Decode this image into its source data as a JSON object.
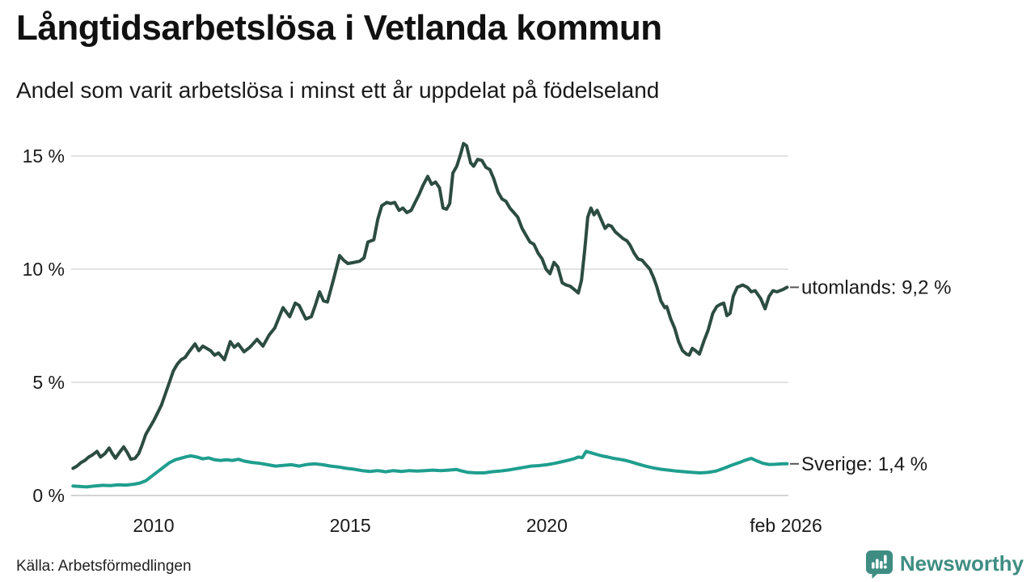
{
  "chart_data": {
    "type": "line",
    "title": "Långtidsarbetslösa i Vetlanda kommun",
    "subtitle": "Andel som varit arbetslösa i minst ett år uppdelat på födelseland",
    "source": "Källa: Arbetsförmedlingen",
    "xlabel": "",
    "ylabel": "",
    "grid": true,
    "legend_position": "end-of-line-labels",
    "x_domain": [
      2007.95,
      2026.17
    ],
    "y_domain": [
      0,
      16
    ],
    "y_ticks": [
      {
        "v": 0,
        "label": "0 %"
      },
      {
        "v": 5,
        "label": "5 %"
      },
      {
        "v": 10,
        "label": "10 %"
      },
      {
        "v": 15,
        "label": "15 %"
      }
    ],
    "x_ticks": [
      {
        "v": 2010,
        "label": "2010"
      },
      {
        "v": 2015,
        "label": "2015"
      },
      {
        "v": 2020,
        "label": "2020"
      },
      {
        "v": 2026.08,
        "label": "feb 2026"
      }
    ],
    "series": [
      {
        "name": "utomlands",
        "color": "#2c4c41",
        "end_label": "utomlands: 9,2 %",
        "last_value": 9.2,
        "points": [
          [
            2007.95,
            1.2
          ],
          [
            2008.05,
            1.3
          ],
          [
            2008.15,
            1.45
          ],
          [
            2008.25,
            1.55
          ],
          [
            2008.35,
            1.7
          ],
          [
            2008.45,
            1.8
          ],
          [
            2008.56,
            1.95
          ],
          [
            2008.65,
            1.7
          ],
          [
            2008.76,
            1.85
          ],
          [
            2008.87,
            2.1
          ],
          [
            2008.95,
            1.85
          ],
          [
            2009.03,
            1.65
          ],
          [
            2009.13,
            1.9
          ],
          [
            2009.24,
            2.15
          ],
          [
            2009.33,
            1.9
          ],
          [
            2009.42,
            1.6
          ],
          [
            2009.53,
            1.65
          ],
          [
            2009.62,
            1.85
          ],
          [
            2009.7,
            2.2
          ],
          [
            2009.8,
            2.7
          ],
          [
            2009.9,
            3.0
          ],
          [
            2010.0,
            3.3
          ],
          [
            2010.1,
            3.65
          ],
          [
            2010.2,
            4.0
          ],
          [
            2010.3,
            4.5
          ],
          [
            2010.4,
            5.0
          ],
          [
            2010.5,
            5.5
          ],
          [
            2010.6,
            5.8
          ],
          [
            2010.7,
            6.0
          ],
          [
            2010.8,
            6.1
          ],
          [
            2010.9,
            6.35
          ],
          [
            2011.05,
            6.7
          ],
          [
            2011.15,
            6.4
          ],
          [
            2011.25,
            6.6
          ],
          [
            2011.35,
            6.5
          ],
          [
            2011.45,
            6.4
          ],
          [
            2011.55,
            6.2
          ],
          [
            2011.65,
            6.3
          ],
          [
            2011.8,
            6.0
          ],
          [
            2011.95,
            6.8
          ],
          [
            2012.05,
            6.55
          ],
          [
            2012.15,
            6.7
          ],
          [
            2012.3,
            6.35
          ],
          [
            2012.45,
            6.55
          ],
          [
            2012.63,
            6.9
          ],
          [
            2012.78,
            6.6
          ],
          [
            2012.94,
            7.1
          ],
          [
            2013.08,
            7.4
          ],
          [
            2013.29,
            8.3
          ],
          [
            2013.46,
            7.9
          ],
          [
            2013.6,
            8.5
          ],
          [
            2013.7,
            8.4
          ],
          [
            2013.87,
            7.8
          ],
          [
            2014.01,
            7.9
          ],
          [
            2014.11,
            8.4
          ],
          [
            2014.22,
            9.0
          ],
          [
            2014.32,
            8.6
          ],
          [
            2014.42,
            8.55
          ],
          [
            2014.59,
            9.65
          ],
          [
            2014.73,
            10.6
          ],
          [
            2014.83,
            10.4
          ],
          [
            2014.94,
            10.25
          ],
          [
            2015.1,
            10.3
          ],
          [
            2015.24,
            10.35
          ],
          [
            2015.35,
            10.5
          ],
          [
            2015.45,
            11.2
          ],
          [
            2015.6,
            11.3
          ],
          [
            2015.7,
            12.2
          ],
          [
            2015.8,
            12.8
          ],
          [
            2015.93,
            12.95
          ],
          [
            2016.03,
            12.9
          ],
          [
            2016.13,
            12.95
          ],
          [
            2016.24,
            12.6
          ],
          [
            2016.34,
            12.7
          ],
          [
            2016.44,
            12.5
          ],
          [
            2016.55,
            12.6
          ],
          [
            2016.65,
            12.95
          ],
          [
            2016.75,
            13.3
          ],
          [
            2016.85,
            13.7
          ],
          [
            2016.97,
            14.1
          ],
          [
            2017.07,
            13.75
          ],
          [
            2017.17,
            13.85
          ],
          [
            2017.27,
            13.6
          ],
          [
            2017.36,
            12.7
          ],
          [
            2017.45,
            12.65
          ],
          [
            2017.53,
            12.9
          ],
          [
            2017.61,
            14.25
          ],
          [
            2017.71,
            14.55
          ],
          [
            2017.81,
            15.1
          ],
          [
            2017.88,
            15.55
          ],
          [
            2017.96,
            15.45
          ],
          [
            2018.06,
            14.7
          ],
          [
            2018.14,
            14.55
          ],
          [
            2018.24,
            14.85
          ],
          [
            2018.35,
            14.8
          ],
          [
            2018.45,
            14.5
          ],
          [
            2018.55,
            14.4
          ],
          [
            2018.65,
            14.0
          ],
          [
            2018.76,
            13.4
          ],
          [
            2018.86,
            13.1
          ],
          [
            2018.96,
            13.0
          ],
          [
            2019.06,
            12.7
          ],
          [
            2019.16,
            12.5
          ],
          [
            2019.26,
            12.3
          ],
          [
            2019.37,
            11.8
          ],
          [
            2019.47,
            11.5
          ],
          [
            2019.57,
            11.2
          ],
          [
            2019.67,
            11.1
          ],
          [
            2019.78,
            10.7
          ],
          [
            2019.88,
            10.45
          ],
          [
            2019.98,
            10.0
          ],
          [
            2020.08,
            9.8
          ],
          [
            2020.18,
            10.3
          ],
          [
            2020.28,
            10.1
          ],
          [
            2020.39,
            9.4
          ],
          [
            2020.49,
            9.3
          ],
          [
            2020.59,
            9.25
          ],
          [
            2020.7,
            9.1
          ],
          [
            2020.8,
            8.95
          ],
          [
            2020.88,
            9.5
          ],
          [
            2020.96,
            10.8
          ],
          [
            2021.04,
            12.3
          ],
          [
            2021.12,
            12.7
          ],
          [
            2021.2,
            12.4
          ],
          [
            2021.28,
            12.6
          ],
          [
            2021.38,
            12.2
          ],
          [
            2021.48,
            11.8
          ],
          [
            2021.56,
            11.95
          ],
          [
            2021.64,
            11.9
          ],
          [
            2021.74,
            11.65
          ],
          [
            2021.84,
            11.5
          ],
          [
            2021.94,
            11.35
          ],
          [
            2022.04,
            11.25
          ],
          [
            2022.12,
            11.05
          ],
          [
            2022.22,
            10.7
          ],
          [
            2022.32,
            10.45
          ],
          [
            2022.42,
            10.4
          ],
          [
            2022.52,
            10.2
          ],
          [
            2022.62,
            10.0
          ],
          [
            2022.72,
            9.6
          ],
          [
            2022.8,
            9.2
          ],
          [
            2022.9,
            8.6
          ],
          [
            2023.0,
            8.3
          ],
          [
            2023.05,
            8.35
          ],
          [
            2023.15,
            7.8
          ],
          [
            2023.25,
            7.4
          ],
          [
            2023.35,
            6.8
          ],
          [
            2023.45,
            6.4
          ],
          [
            2023.55,
            6.25
          ],
          [
            2023.62,
            6.2
          ],
          [
            2023.7,
            6.5
          ],
          [
            2023.78,
            6.4
          ],
          [
            2023.88,
            6.25
          ],
          [
            2024.0,
            6.85
          ],
          [
            2024.1,
            7.3
          ],
          [
            2024.22,
            8.05
          ],
          [
            2024.32,
            8.35
          ],
          [
            2024.42,
            8.45
          ],
          [
            2024.5,
            8.5
          ],
          [
            2024.58,
            7.95
          ],
          [
            2024.66,
            8.05
          ],
          [
            2024.74,
            8.8
          ],
          [
            2024.84,
            9.2
          ],
          [
            2024.98,
            9.3
          ],
          [
            2025.1,
            9.2
          ],
          [
            2025.2,
            9.0
          ],
          [
            2025.3,
            9.05
          ],
          [
            2025.44,
            8.7
          ],
          [
            2025.55,
            8.25
          ],
          [
            2025.65,
            8.8
          ],
          [
            2025.75,
            9.05
          ],
          [
            2025.85,
            9.0
          ],
          [
            2026.0,
            9.1
          ],
          [
            2026.11,
            9.2
          ]
        ]
      },
      {
        "name": "Sverige",
        "color": "#1f9e8e",
        "end_label": "Sverige: 1,4 %",
        "last_value": 1.4,
        "points": [
          [
            2007.95,
            0.42
          ],
          [
            2008.1,
            0.4
          ],
          [
            2008.3,
            0.38
          ],
          [
            2008.5,
            0.42
          ],
          [
            2008.7,
            0.45
          ],
          [
            2008.9,
            0.44
          ],
          [
            2009.1,
            0.47
          ],
          [
            2009.3,
            0.46
          ],
          [
            2009.5,
            0.5
          ],
          [
            2009.65,
            0.55
          ],
          [
            2009.8,
            0.65
          ],
          [
            2009.95,
            0.85
          ],
          [
            2010.1,
            1.05
          ],
          [
            2010.25,
            1.25
          ],
          [
            2010.4,
            1.45
          ],
          [
            2010.55,
            1.58
          ],
          [
            2010.7,
            1.65
          ],
          [
            2010.85,
            1.72
          ],
          [
            2010.95,
            1.75
          ],
          [
            2011.1,
            1.7
          ],
          [
            2011.25,
            1.62
          ],
          [
            2011.4,
            1.66
          ],
          [
            2011.55,
            1.58
          ],
          [
            2011.7,
            1.55
          ],
          [
            2011.85,
            1.58
          ],
          [
            2012.0,
            1.55
          ],
          [
            2012.16,
            1.6
          ],
          [
            2012.3,
            1.52
          ],
          [
            2012.5,
            1.46
          ],
          [
            2012.7,
            1.42
          ],
          [
            2012.9,
            1.36
          ],
          [
            2013.1,
            1.3
          ],
          [
            2013.3,
            1.33
          ],
          [
            2013.5,
            1.36
          ],
          [
            2013.7,
            1.3
          ],
          [
            2013.9,
            1.37
          ],
          [
            2014.1,
            1.4
          ],
          [
            2014.3,
            1.36
          ],
          [
            2014.5,
            1.3
          ],
          [
            2014.7,
            1.26
          ],
          [
            2014.9,
            1.2
          ],
          [
            2015.1,
            1.16
          ],
          [
            2015.3,
            1.1
          ],
          [
            2015.5,
            1.06
          ],
          [
            2015.7,
            1.1
          ],
          [
            2015.9,
            1.05
          ],
          [
            2016.1,
            1.1
          ],
          [
            2016.3,
            1.06
          ],
          [
            2016.5,
            1.1
          ],
          [
            2016.7,
            1.08
          ],
          [
            2016.9,
            1.1
          ],
          [
            2017.1,
            1.12
          ],
          [
            2017.3,
            1.1
          ],
          [
            2017.5,
            1.12
          ],
          [
            2017.7,
            1.15
          ],
          [
            2017.85,
            1.08
          ],
          [
            2018.0,
            1.02
          ],
          [
            2018.2,
            1.0
          ],
          [
            2018.4,
            1.0
          ],
          [
            2018.6,
            1.05
          ],
          [
            2018.8,
            1.08
          ],
          [
            2019.0,
            1.12
          ],
          [
            2019.2,
            1.18
          ],
          [
            2019.4,
            1.24
          ],
          [
            2019.6,
            1.3
          ],
          [
            2019.8,
            1.32
          ],
          [
            2020.0,
            1.36
          ],
          [
            2020.2,
            1.42
          ],
          [
            2020.4,
            1.5
          ],
          [
            2020.55,
            1.56
          ],
          [
            2020.7,
            1.63
          ],
          [
            2020.8,
            1.7
          ],
          [
            2020.9,
            1.67
          ],
          [
            2021.0,
            1.95
          ],
          [
            2021.1,
            1.9
          ],
          [
            2021.25,
            1.82
          ],
          [
            2021.4,
            1.75
          ],
          [
            2021.55,
            1.7
          ],
          [
            2021.7,
            1.64
          ],
          [
            2021.85,
            1.6
          ],
          [
            2022.0,
            1.55
          ],
          [
            2022.15,
            1.48
          ],
          [
            2022.3,
            1.4
          ],
          [
            2022.5,
            1.3
          ],
          [
            2022.7,
            1.22
          ],
          [
            2022.9,
            1.16
          ],
          [
            2023.1,
            1.12
          ],
          [
            2023.3,
            1.08
          ],
          [
            2023.5,
            1.05
          ],
          [
            2023.7,
            1.02
          ],
          [
            2023.9,
            1.0
          ],
          [
            2024.1,
            1.02
          ],
          [
            2024.3,
            1.08
          ],
          [
            2024.5,
            1.2
          ],
          [
            2024.7,
            1.34
          ],
          [
            2024.9,
            1.46
          ],
          [
            2025.05,
            1.56
          ],
          [
            2025.2,
            1.64
          ],
          [
            2025.35,
            1.52
          ],
          [
            2025.5,
            1.42
          ],
          [
            2025.65,
            1.37
          ],
          [
            2025.8,
            1.38
          ],
          [
            2026.0,
            1.4
          ],
          [
            2026.11,
            1.4
          ]
        ]
      }
    ]
  },
  "branding": {
    "name": "Newsworthy",
    "color": "#3f8d82",
    "icon": "bar-chart-speech-bubble-icon"
  }
}
